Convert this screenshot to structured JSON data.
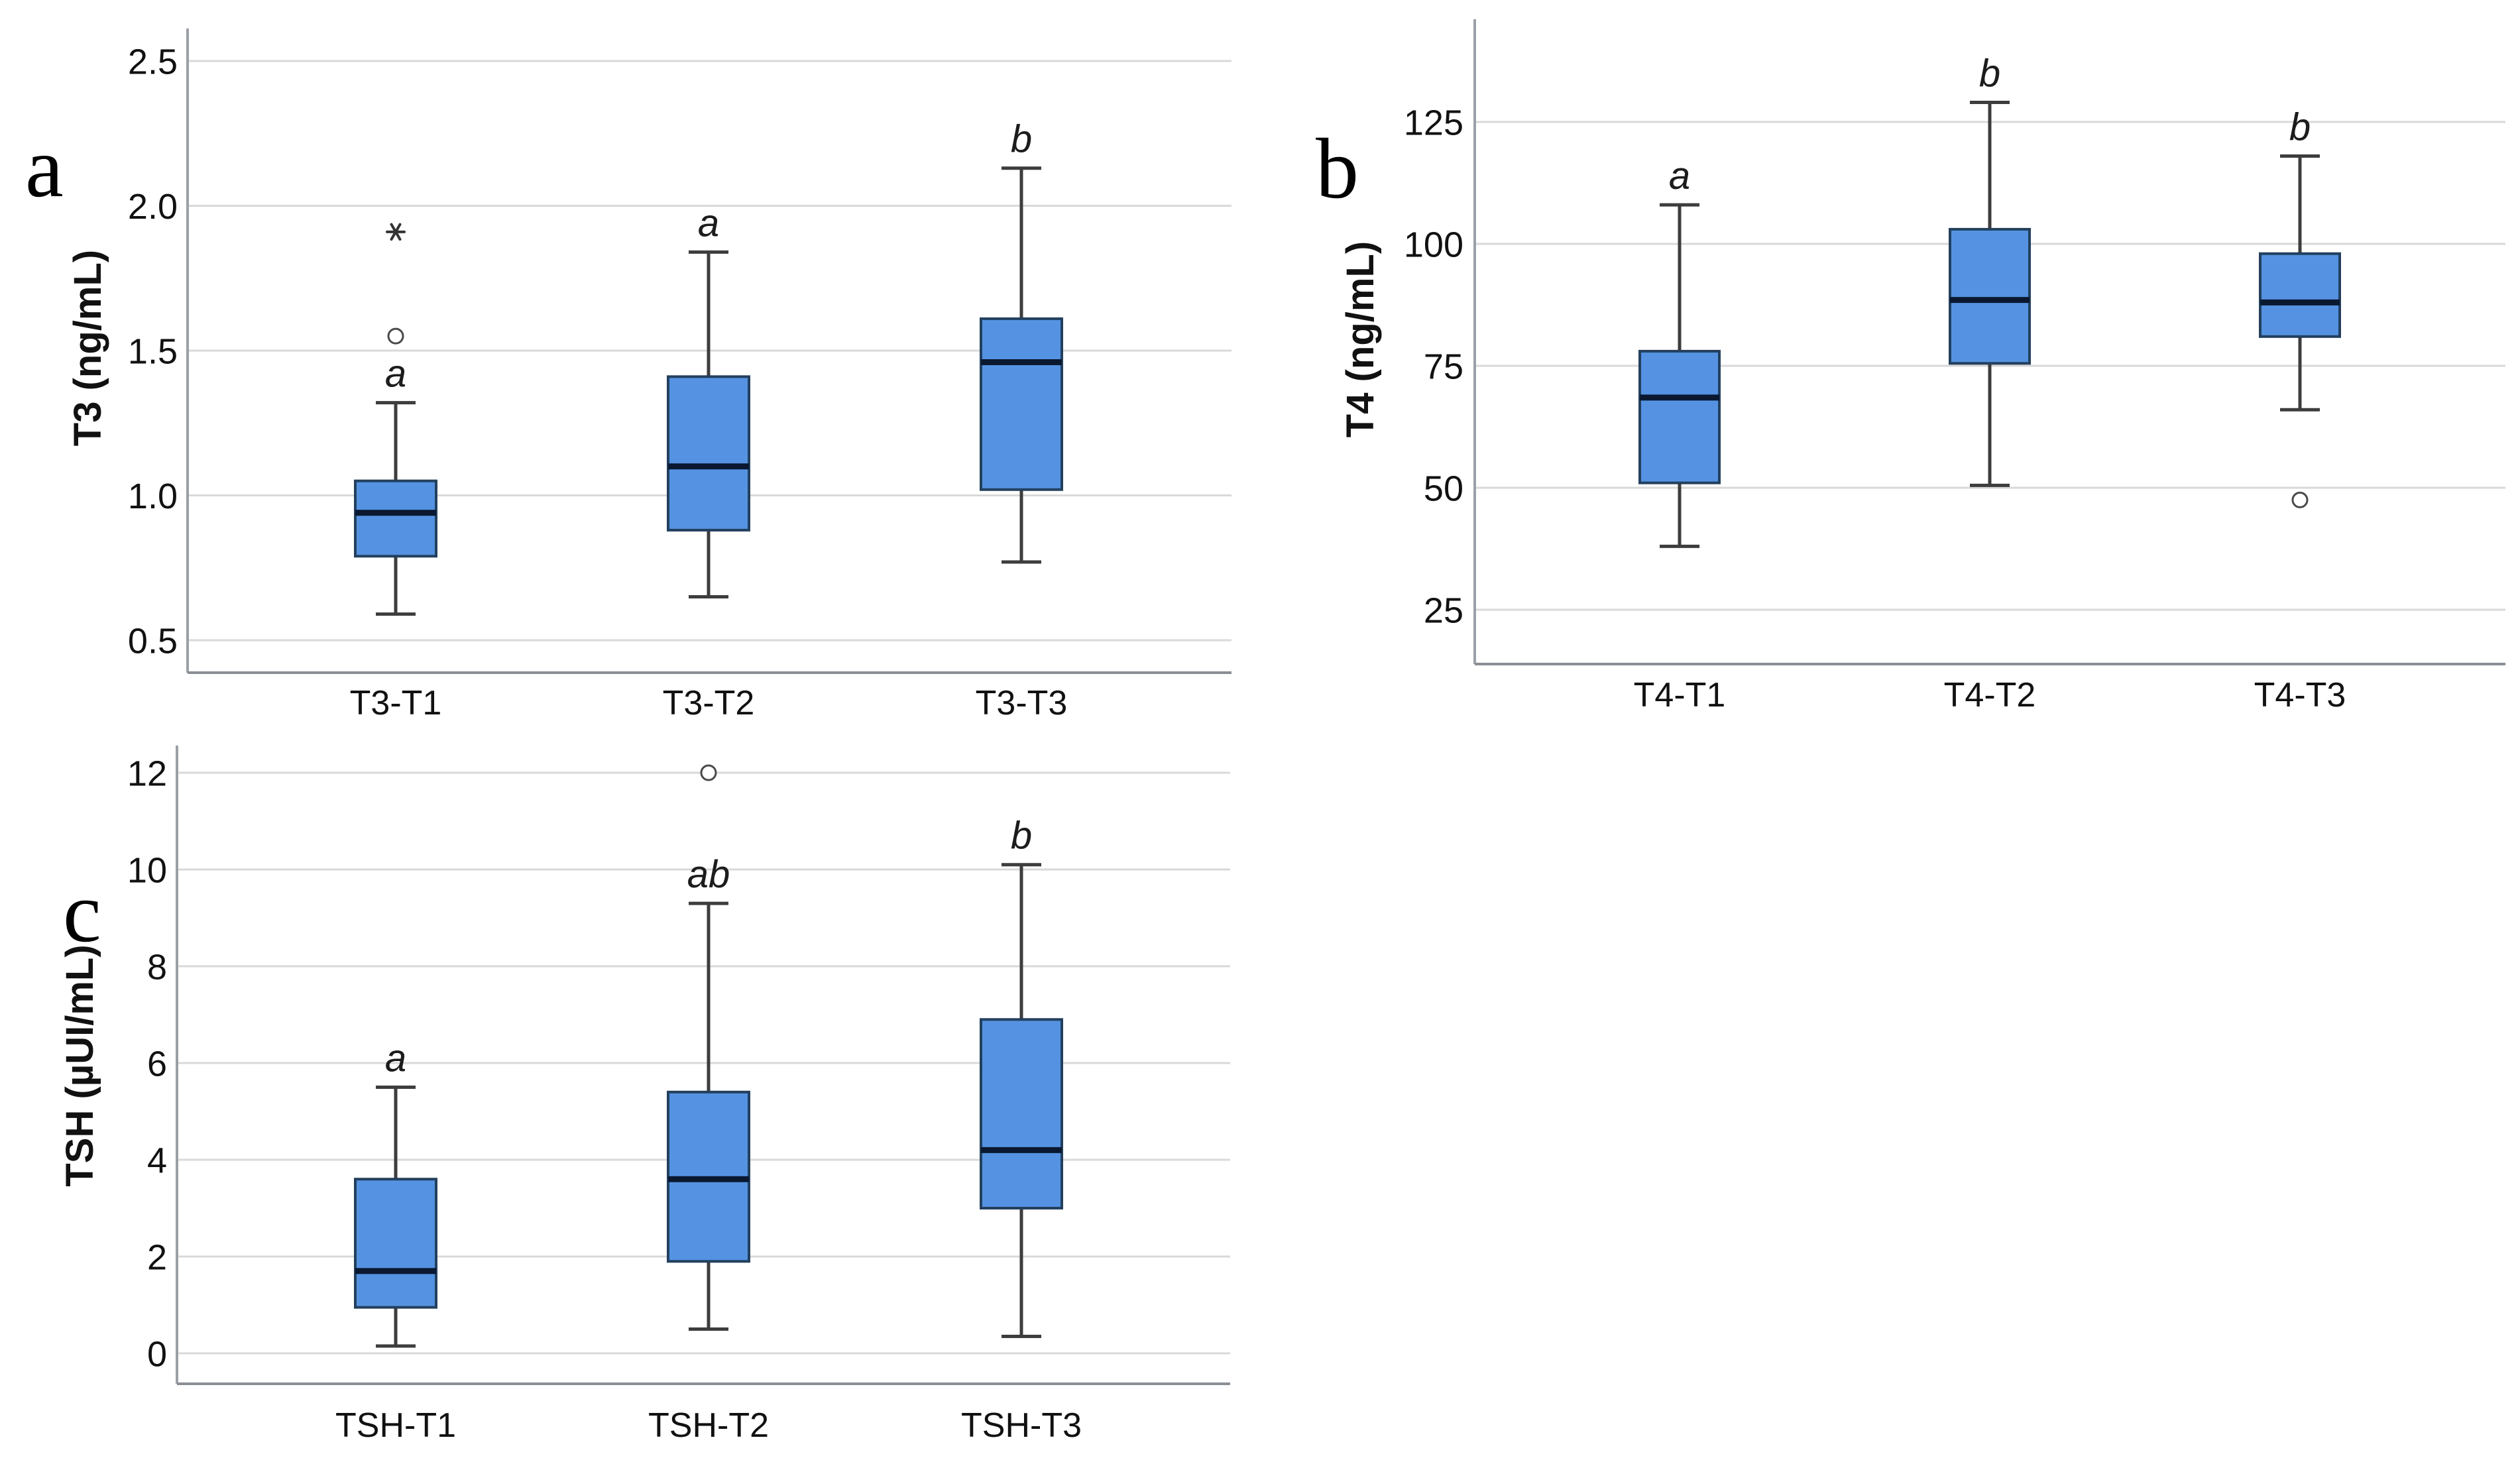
{
  "figure": {
    "background_color": "#ffffff",
    "box_fill_color": "#5593e2",
    "box_border_color": "#23405e",
    "median_color": "#0a1830",
    "whisker_color": "#3d3d3d",
    "gridline_color": "#d9d9d9",
    "spine_color": "#9aa0a6",
    "text_color": "#111111"
  },
  "chart_data": [
    {
      "type": "box",
      "panel_letter": "a",
      "ylabel": "T3 (ng/mL)",
      "ytick_labels": [
        "0.5",
        "1.0",
        "1.5",
        "2.0",
        "2.5"
      ],
      "yticks": [
        0.5,
        1.0,
        1.5,
        2.0,
        2.5
      ],
      "ylim": [
        0.39,
        2.61
      ],
      "grid": "horizontal",
      "legend": "none",
      "categories": [
        "T3-T1",
        "T3-T2",
        "T3-T3"
      ],
      "boxes": [
        {
          "category": "T3-T1",
          "whisker_low": 0.59,
          "q1": 0.79,
          "median": 0.94,
          "q3": 1.05,
          "whisker_high": 1.32,
          "sig": "a",
          "outliers": [
            {
              "value": 1.55,
              "marker": "circle"
            },
            {
              "value": 1.91,
              "marker": "star"
            }
          ]
        },
        {
          "category": "T3-T2",
          "whisker_low": 0.65,
          "q1": 0.88,
          "median": 1.1,
          "q3": 1.41,
          "whisker_high": 1.84,
          "sig": "a",
          "outliers": []
        },
        {
          "category": "T3-T3",
          "whisker_low": 0.77,
          "q1": 1.02,
          "median": 1.46,
          "q3": 1.61,
          "whisker_high": 2.13,
          "sig": "b",
          "outliers": []
        }
      ]
    },
    {
      "type": "box",
      "panel_letter": "b",
      "ylabel": "T4 (ng/mL)",
      "ytick_labels": [
        "25",
        "50",
        "75",
        "100",
        "125"
      ],
      "yticks": [
        25,
        50,
        75,
        100,
        125
      ],
      "ylim": [
        13,
        146
      ],
      "grid": "horizontal",
      "legend": "none",
      "categories": [
        "T4-T1",
        "T4-T2",
        "T4-T3"
      ],
      "boxes": [
        {
          "category": "T4-T1",
          "whisker_low": 38,
          "q1": 51,
          "median": 68.5,
          "q3": 78,
          "whisker_high": 108,
          "sig": "a",
          "outliers": []
        },
        {
          "category": "T4-T2",
          "whisker_low": 50.5,
          "q1": 75.5,
          "median": 88.5,
          "q3": 103,
          "whisker_high": 129,
          "sig": "b",
          "outliers": []
        },
        {
          "category": "T4-T3",
          "whisker_low": 66,
          "q1": 81,
          "median": 88,
          "q3": 98,
          "whisker_high": 118,
          "sig": "b",
          "outliers": [
            {
              "value": 47.5,
              "marker": "circle"
            }
          ]
        }
      ]
    },
    {
      "type": "box",
      "panel_letter": "c",
      "ylabel": "TSH (µUI/mL)",
      "ytick_labels": [
        "0",
        "2",
        "4",
        "6",
        "8",
        "10",
        "12"
      ],
      "yticks": [
        0,
        2,
        4,
        6,
        8,
        10,
        12
      ],
      "ylim": [
        -0.6,
        12.6
      ],
      "grid": "horizontal",
      "legend": "none",
      "categories": [
        "TSH-T1",
        "TSH-T2",
        "TSH-T3"
      ],
      "boxes": [
        {
          "category": "TSH-T1",
          "whisker_low": 0.15,
          "q1": 0.95,
          "median": 1.7,
          "q3": 3.6,
          "whisker_high": 5.5,
          "sig": "a",
          "outliers": []
        },
        {
          "category": "TSH-T2",
          "whisker_low": 0.5,
          "q1": 1.9,
          "median": 3.6,
          "q3": 5.4,
          "whisker_high": 9.3,
          "sig": "ab",
          "outliers": [
            {
              "value": 12.0,
              "marker": "circle"
            }
          ]
        },
        {
          "category": "TSH-T3",
          "whisker_low": 0.35,
          "q1": 3.0,
          "median": 4.2,
          "q3": 6.9,
          "whisker_high": 10.1,
          "sig": "b",
          "outliers": []
        }
      ]
    }
  ]
}
